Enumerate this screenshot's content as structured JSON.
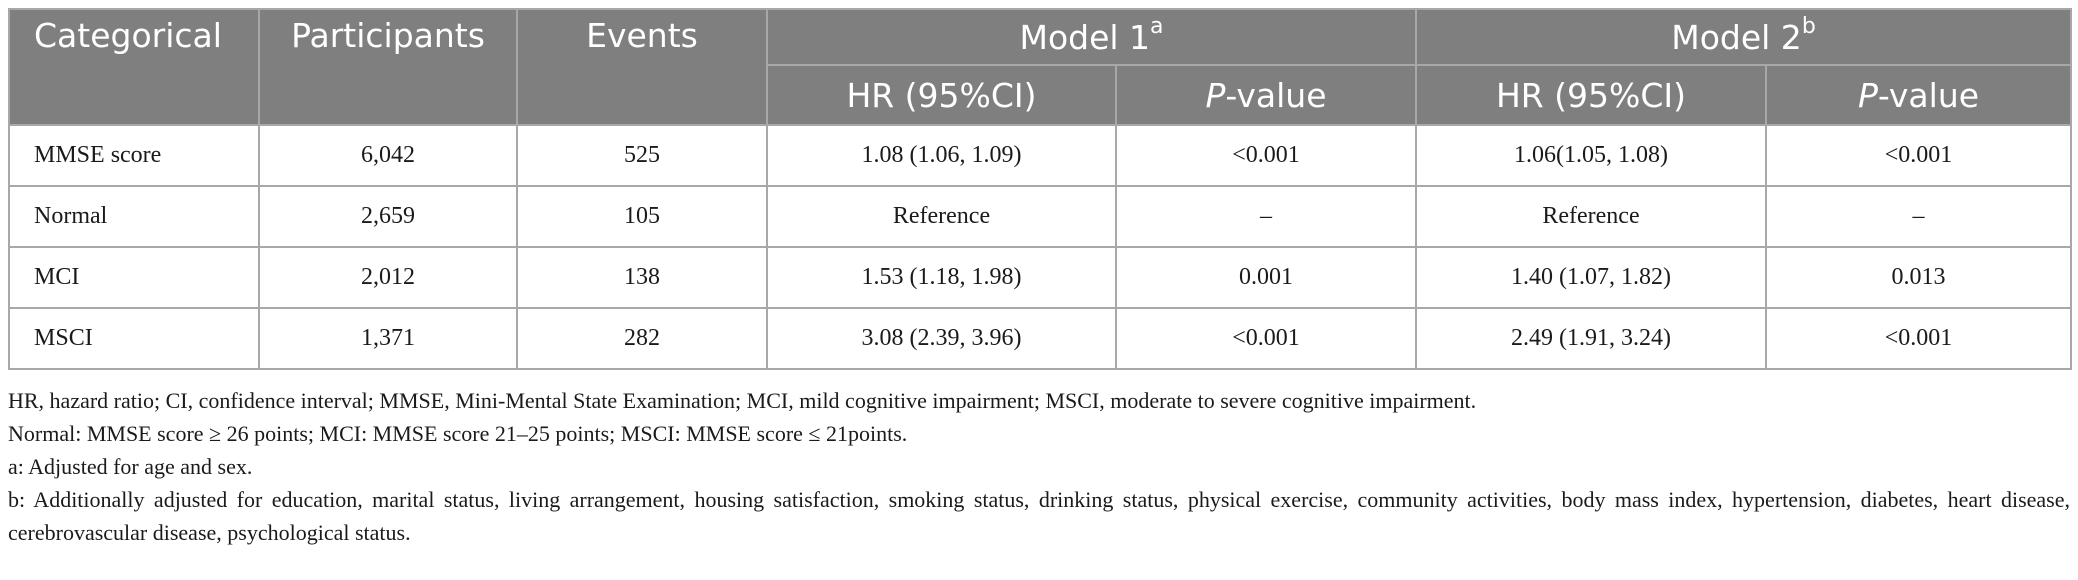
{
  "header": {
    "categorical": "Categorical",
    "participants": "Participants",
    "events": "Events",
    "model1": "Model 1",
    "model1_sup": "a",
    "model2": "Model 2",
    "model2_sup": "b",
    "hr": "HR (95%CI)",
    "p_italic": "P",
    "p_rest": "-value"
  },
  "rows": [
    {
      "label": "MMSE score",
      "participants": "6,042",
      "events": "525",
      "m1_hr": "1.08 (1.06, 1.09)",
      "m1_p": "<0.001",
      "m2_hr": "1.06(1.05, 1.08)",
      "m2_p": "<0.001"
    },
    {
      "label": "Normal",
      "participants": "2,659",
      "events": "105",
      "m1_hr": "Reference",
      "m1_p": "–",
      "m2_hr": "Reference",
      "m2_p": "–"
    },
    {
      "label": "MCI",
      "participants": "2,012",
      "events": "138",
      "m1_hr": "1.53 (1.18, 1.98)",
      "m1_p": "0.001",
      "m2_hr": "1.40 (1.07, 1.82)",
      "m2_p": "0.013"
    },
    {
      "label": "MSCI",
      "participants": "1,371",
      "events": "282",
      "m1_hr": "3.08 (2.39, 3.96)",
      "m1_p": "<0.001",
      "m2_hr": "2.49 (1.91, 3.24)",
      "m2_p": "<0.001"
    }
  ],
  "notes": {
    "abbreviations": "HR, hazard ratio; CI, confidence interval; MMSE, Mini-Mental State Examination; MCI, mild cognitive impairment; MSCI, moderate to severe cognitive impairment.",
    "definitions": "Normal: MMSE score ≥ 26 points; MCI: MMSE score 21–25 points; MSCI: MMSE score ≤ 21points.",
    "note_a": "a: Adjusted for age and sex.",
    "note_b": "b: Additionally adjusted for education, marital status, living arrangement, housing satisfaction, smoking status, drinking status, physical exercise, community activities, body mass index, hypertension, diabetes, heart disease, cerebrovascular disease, psychological status."
  }
}
